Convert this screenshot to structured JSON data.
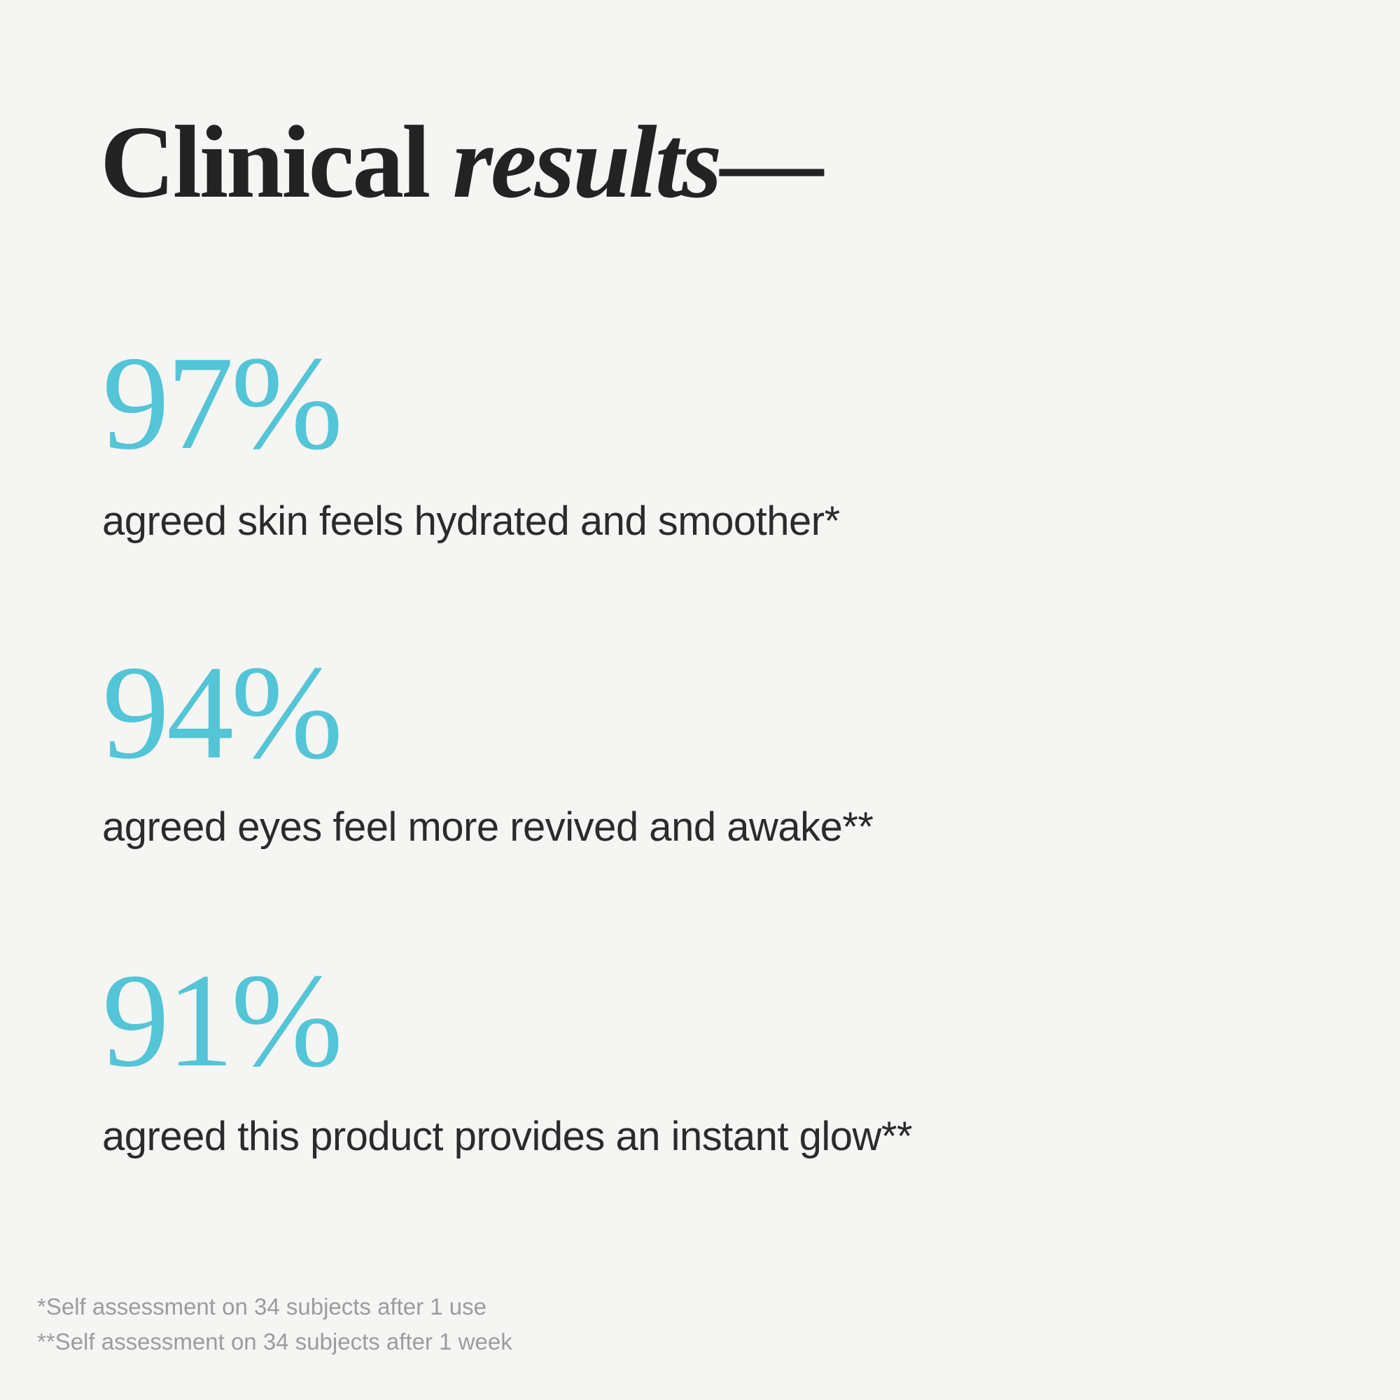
{
  "page": {
    "background_color": "#f5f5f3",
    "accent_color": "#53c5d6",
    "heading_color": "#232323",
    "body_text_color": "#2b2b2b",
    "footnote_color": "#9c9c9c"
  },
  "title": {
    "regular": "Clinical ",
    "italic": "results",
    "dash": "—"
  },
  "stats": [
    {
      "value": "97%",
      "description": "agreed skin feels hydrated and smoother*"
    },
    {
      "value": "94%",
      "description": "agreed eyes feel more revived and awake**"
    },
    {
      "value": "91%",
      "description": "agreed this product provides an instant glow**"
    }
  ],
  "footnotes": [
    "*Self assessment on 34 subjects after 1 use",
    "**Self assessment on 34 subjects after 1 week"
  ]
}
